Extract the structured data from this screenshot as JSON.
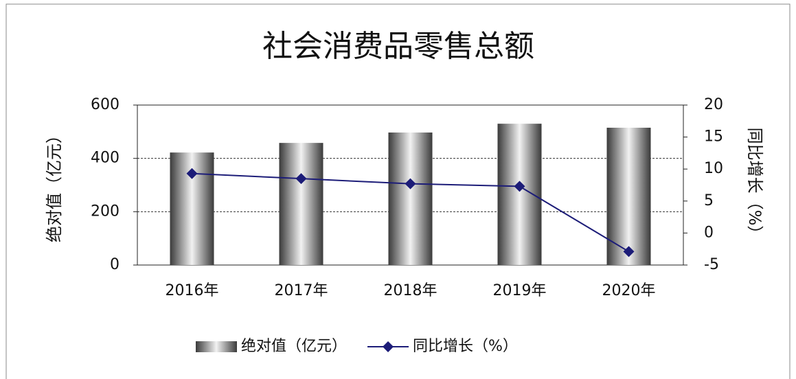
{
  "chart_data": {
    "type": "bar_line",
    "title": "社会消费品零售总额",
    "categories": [
      "2016年",
      "2017年",
      "2018年",
      "2019年",
      "2020年"
    ],
    "series": [
      {
        "name": "绝对值（亿元）",
        "type": "bar",
        "color": "#808080",
        "values": [
          422,
          458,
          497,
          530,
          515
        ]
      },
      {
        "name": "同比增长（%）",
        "type": "line",
        "axis": "y2",
        "color": "#1c1c78",
        "values": [
          9.3,
          8.5,
          7.7,
          7.3,
          -2.9
        ]
      }
    ],
    "ylabel": "绝对值（亿元）",
    "y2label": "同比增长（%）",
    "ylim": [
      0,
      600
    ],
    "yticks": [
      0,
      200,
      400,
      600
    ],
    "y2lim": [
      -5,
      20
    ],
    "y2ticks": [
      -5,
      0,
      5,
      10,
      15,
      20
    ],
    "grid": true,
    "legend": "bottom"
  }
}
